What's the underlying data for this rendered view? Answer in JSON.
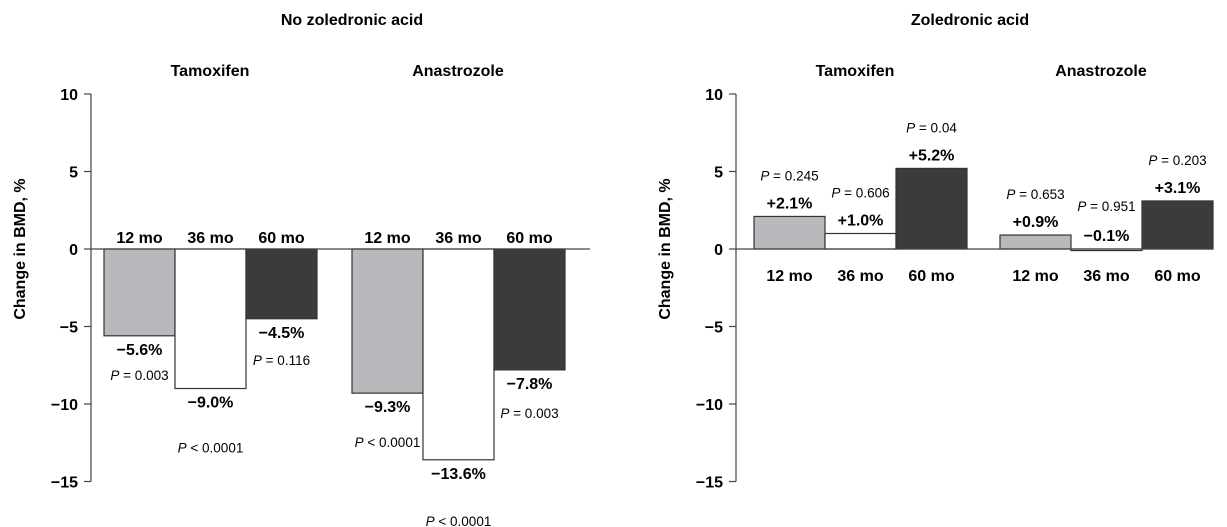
{
  "colors": {
    "bar_12mo": "#b8b9bd",
    "bar_36mo": "#ffffff",
    "bar_60mo": "#3b3b3b",
    "outline": "#333333"
  },
  "chart_data": [
    {
      "type": "bar",
      "title": "No zoledronic acid",
      "ylabel": "Change in BMD, %",
      "ylim": [
        -15,
        10
      ],
      "yticks": [
        "10",
        "5",
        "0",
        "−5",
        "−10",
        "−15"
      ],
      "categories": [
        "12 mo",
        "36 mo",
        "60 mo"
      ],
      "groups": [
        {
          "name": "Tamoxifen",
          "bars": [
            {
              "category": "12 mo",
              "value": -5.6,
              "label": "−5.6%",
              "p_label": "P",
              "p_text": " = 0.003"
            },
            {
              "category": "36 mo",
              "value": -9.0,
              "label": "−9.0%",
              "p_label": "P",
              "p_text": " < 0.0001"
            },
            {
              "category": "60 mo",
              "value": -4.5,
              "label": "−4.5%",
              "p_label": "P",
              "p_text": " = 0.116"
            }
          ]
        },
        {
          "name": "Anastrozole",
          "bars": [
            {
              "category": "12 mo",
              "value": -9.3,
              "label": "−9.3%",
              "p_label": "P",
              "p_text": " < 0.0001"
            },
            {
              "category": "36 mo",
              "value": -13.6,
              "label": "−13.6%",
              "p_label": "P",
              "p_text": " < 0.0001"
            },
            {
              "category": "60 mo",
              "value": -7.8,
              "label": "−7.8%",
              "p_label": "P",
              "p_text": " = 0.003"
            }
          ]
        }
      ]
    },
    {
      "type": "bar",
      "title": "Zoledronic acid",
      "ylabel": "Change in BMD, %",
      "ylim": [
        -15,
        10
      ],
      "yticks": [
        "10",
        "5",
        "0",
        "−5",
        "−10",
        "−15"
      ],
      "categories": [
        "12 mo",
        "36 mo",
        "60 mo"
      ],
      "groups": [
        {
          "name": "Tamoxifen",
          "bars": [
            {
              "category": "12 mo",
              "value": 2.1,
              "label": "+2.1%",
              "p_label": "P",
              "p_text": " = 0.245"
            },
            {
              "category": "36 mo",
              "value": 1.0,
              "label": "+1.0%",
              "p_label": "P",
              "p_text": " = 0.606"
            },
            {
              "category": "60 mo",
              "value": 5.2,
              "label": "+5.2%",
              "p_label": "P",
              "p_text": " = 0.04"
            }
          ]
        },
        {
          "name": "Anastrozole",
          "bars": [
            {
              "category": "12 mo",
              "value": 0.9,
              "label": "+0.9%",
              "p_label": "P",
              "p_text": " = 0.653"
            },
            {
              "category": "36 mo",
              "value": -0.1,
              "label": "−0.1%",
              "p_label": "P",
              "p_text": " = 0.951"
            },
            {
              "category": "60 mo",
              "value": 3.1,
              "label": "+3.1%",
              "p_label": "P",
              "p_text": " = 0.203"
            }
          ]
        }
      ]
    }
  ]
}
